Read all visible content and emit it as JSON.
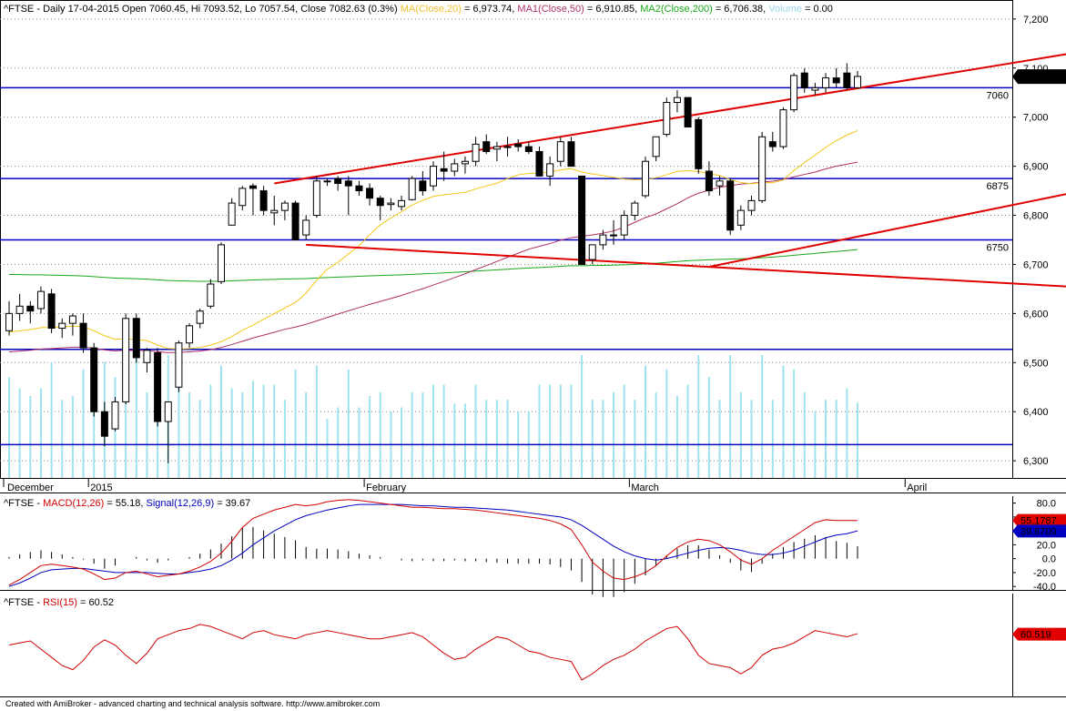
{
  "header": {
    "symbol": "^FTSE",
    "info": "Daily 17-04-2015 Open 7060.45, Hi 7093.52, Lo 7057.54, Close 7082.63 (0.3%)",
    "ma20_label": "MA(Close,20)",
    "ma20_value": "= 6,973.74,",
    "ma50_label": "MA1(Close,50)",
    "ma50_value": "= 6,910.85,",
    "ma200_label": "MA2(Close,200)",
    "ma200_value": "= 6,706.38,",
    "volume_label": "Volume",
    "volume_value": "= 0.00"
  },
  "macd_header": {
    "symbol": "^FTSE",
    "macd_label": "MACD(12,26)",
    "macd_value": "= 55.18,",
    "signal_label": "Signal(12,26,9)",
    "signal_value": "= 39.67"
  },
  "rsi_header": {
    "symbol": "^FTSE",
    "rsi_label": "RSI(15)",
    "rsi_value": "= 60.52"
  },
  "footer": "Created with AmiBroker - advanced charting and technical analysis software. http://www.amibroker.com",
  "colors": {
    "up": "#ffffff",
    "down": "#000000",
    "ma20": "#f5c518",
    "ma50": "#b0306a",
    "ma200": "#1aa81a",
    "trend": "#e00000",
    "hline": "#0000c0",
    "volume": "#9fe3f0",
    "macd": "#d00000",
    "signal": "#0000c0",
    "rsi": "#d00000"
  },
  "chart_data": [
    {
      "type": "candlestick",
      "title": "^FTSE - Daily 17-04-2015",
      "yticks": [
        6300,
        6400,
        6500,
        6600,
        6700,
        6800,
        6900,
        7000,
        7100,
        7200
      ],
      "ytick_labels": [
        "6,300",
        "6,400",
        "6,500",
        "6,600",
        "6,700",
        "6,800",
        "6,900",
        "7,000",
        "7,100",
        "7,200"
      ],
      "ylim": [
        6265,
        7235
      ],
      "month_labels": [
        {
          "label": "December",
          "index": 0
        },
        {
          "label": "2015",
          "index": 8
        },
        {
          "label": "February",
          "index": 34
        },
        {
          "label": "March",
          "index": 59
        },
        {
          "label": "April",
          "index": 85
        }
      ],
      "last_price_label": "7,082.63",
      "last_price": 7082.63,
      "horizontal_lines": [
        {
          "value": 7060,
          "label": "7060"
        },
        {
          "value": 6875,
          "label": "6875"
        },
        {
          "value": 6750,
          "label": "6750"
        },
        {
          "value": 6527,
          "label": ""
        },
        {
          "value": 6333,
          "label": ""
        }
      ],
      "trendlines": [
        {
          "x1": 25,
          "y1": 6865,
          "x2": 101,
          "y2": 7133
        },
        {
          "x1": 28,
          "y1": 6740,
          "x2": 104,
          "y2": 6650
        },
        {
          "x1": 66,
          "y1": 6695,
          "x2": 108,
          "y2": 6880
        }
      ],
      "ohlc": [
        [
          6565,
          6625,
          6555,
          6600
        ],
        [
          6600,
          6640,
          6585,
          6615
        ],
        [
          6615,
          6625,
          6580,
          6605
        ],
        [
          6610,
          6655,
          6600,
          6645
        ],
        [
          6640,
          6650,
          6560,
          6570
        ],
        [
          6570,
          6590,
          6550,
          6580
        ],
        [
          6580,
          6600,
          6555,
          6595
        ],
        [
          6580,
          6600,
          6520,
          6530
        ],
        [
          6530,
          6540,
          6390,
          6400
        ],
        [
          6400,
          6420,
          6330,
          6350
        ],
        [
          6365,
          6430,
          6360,
          6420
        ],
        [
          6420,
          6600,
          6415,
          6590
        ],
        [
          6590,
          6600,
          6500,
          6510
        ],
        [
          6500,
          6530,
          6480,
          6525
        ],
        [
          6520,
          6530,
          6370,
          6380
        ],
        [
          6380,
          6420,
          6295,
          6420
        ],
        [
          6450,
          6545,
          6440,
          6540
        ],
        [
          6540,
          6580,
          6530,
          6575
        ],
        [
          6580,
          6610,
          6570,
          6605
        ],
        [
          6615,
          6670,
          6610,
          6660
        ],
        [
          6665,
          6745,
          6660,
          6740
        ],
        [
          6780,
          6835,
          6780,
          6825
        ],
        [
          6820,
          6860,
          6810,
          6855
        ],
        [
          6860,
          6865,
          6800,
          6855
        ],
        [
          6850,
          6860,
          6800,
          6810
        ],
        [
          6805,
          6840,
          6780,
          6810
        ],
        [
          6810,
          6830,
          6790,
          6825
        ],
        [
          6825,
          6830,
          6750,
          6750
        ],
        [
          6760,
          6800,
          6750,
          6790
        ],
        [
          6800,
          6880,
          6795,
          6870
        ],
        [
          6870,
          6875,
          6860,
          6870
        ],
        [
          6875,
          6880,
          6850,
          6865
        ],
        [
          6870,
          6880,
          6800,
          6860
        ],
        [
          6860,
          6870,
          6840,
          6850
        ],
        [
          6855,
          6865,
          6820,
          6835
        ],
        [
          6835,
          6840,
          6790,
          6820
        ],
        [
          6822,
          6835,
          6810,
          6825
        ],
        [
          6818,
          6840,
          6810,
          6830
        ],
        [
          6832,
          6880,
          6830,
          6875
        ],
        [
          6870,
          6890,
          6840,
          6850
        ],
        [
          6860,
          6910,
          6850,
          6900
        ],
        [
          6895,
          6930,
          6870,
          6890
        ],
        [
          6890,
          6915,
          6880,
          6905
        ],
        [
          6905,
          6920,
          6885,
          6910
        ],
        [
          6910,
          6960,
          6900,
          6945
        ],
        [
          6950,
          6965,
          6925,
          6930
        ],
        [
          6935,
          6950,
          6910,
          6940
        ],
        [
          6940,
          6960,
          6920,
          6940
        ],
        [
          6945,
          6955,
          6930,
          6940
        ],
        [
          6940,
          6950,
          6925,
          6930
        ],
        [
          6930,
          6940,
          6880,
          6880
        ],
        [
          6880,
          6920,
          6860,
          6905
        ],
        [
          6910,
          6960,
          6900,
          6950
        ],
        [
          6950,
          6960,
          6900,
          6900
        ],
        [
          6880,
          6880,
          6700,
          6700
        ],
        [
          6710,
          6740,
          6700,
          6740
        ],
        [
          6740,
          6770,
          6730,
          6760
        ],
        [
          6760,
          6790,
          6740,
          6760
        ],
        [
          6760,
          6810,
          6750,
          6800
        ],
        [
          6800,
          6830,
          6790,
          6825
        ],
        [
          6840,
          6920,
          6835,
          6910
        ],
        [
          6920,
          6960,
          6910,
          6960
        ],
        [
          6965,
          7040,
          6960,
          7030
        ],
        [
          7030,
          7055,
          7010,
          7040
        ],
        [
          7040,
          7040,
          6980,
          6980
        ],
        [
          6995,
          7000,
          6885,
          6895
        ],
        [
          6890,
          6910,
          6840,
          6850
        ],
        [
          6860,
          6880,
          6840,
          6870
        ],
        [
          6870,
          6875,
          6760,
          6770
        ],
        [
          6780,
          6820,
          6770,
          6810
        ],
        [
          6810,
          6840,
          6800,
          6830
        ],
        [
          6830,
          6970,
          6825,
          6960
        ],
        [
          6950,
          6970,
          6930,
          6940
        ],
        [
          6940,
          7020,
          6935,
          7015
        ],
        [
          7015,
          7090,
          7010,
          7085
        ],
        [
          7090,
          7100,
          7050,
          7060
        ],
        [
          7055,
          7070,
          7045,
          7060
        ],
        [
          7060,
          7090,
          7050,
          7080
        ],
        [
          7080,
          7100,
          7060,
          7070
        ],
        [
          7090,
          7110,
          7055,
          7060
        ],
        [
          7060,
          7094,
          7058,
          7083
        ]
      ],
      "x_mapping_note": "",
      "volume": [],
      "ma20": [],
      "ma50": [],
      "ma200": []
    },
    {
      "type": "line",
      "title": "^FTSE - MACD(12,26) = 55.18, Signal(12,26,9) = 39.67",
      "yticks": [
        80,
        60,
        40,
        20,
        0,
        -20,
        -40
      ],
      "ytick_labels": [
        "80.0",
        "60.0",
        "40.0",
        "20.0",
        "0.0",
        "-20.0",
        "-40.0"
      ],
      "ylim": [
        -45,
        90
      ],
      "macd_label": "55.1787",
      "signal_label": "39.6709",
      "series": [
        {
          "name": "MACD",
          "values": [
            -38,
            -30,
            -20,
            -10,
            -8,
            -10,
            -12,
            -15,
            -22,
            -30,
            -28,
            -20,
            -18,
            -22,
            -26,
            -24,
            -22,
            -18,
            -12,
            -4,
            8,
            25,
            45,
            58,
            64,
            70,
            74,
            78,
            76,
            78,
            82,
            84,
            85,
            84,
            82,
            80,
            78,
            76,
            74,
            74,
            73,
            72,
            72,
            71,
            70,
            68,
            66,
            64,
            62,
            60,
            58,
            55,
            50,
            42,
            20,
            -5,
            -18,
            -28,
            -30,
            -26,
            -20,
            -10,
            4,
            16,
            24,
            28,
            26,
            20,
            10,
            -2,
            -8,
            0,
            12,
            22,
            32,
            42,
            52,
            56,
            55,
            55,
            55
          ]
        },
        {
          "name": "Signal",
          "values": [
            -40,
            -35,
            -28,
            -20,
            -16,
            -15,
            -14,
            -14,
            -16,
            -18,
            -20,
            -20,
            -20,
            -20,
            -21,
            -22,
            -22,
            -20,
            -18,
            -15,
            -10,
            -2,
            8,
            20,
            30,
            40,
            48,
            56,
            62,
            66,
            70,
            73,
            76,
            78,
            78,
            78,
            78,
            78,
            77,
            76,
            76,
            75,
            74,
            74,
            73,
            72,
            71,
            70,
            68,
            66,
            64,
            62,
            60,
            56,
            48,
            38,
            28,
            18,
            10,
            4,
            0,
            -2,
            0,
            4,
            8,
            12,
            15,
            16,
            15,
            12,
            8,
            6,
            6,
            8,
            12,
            18,
            24,
            30,
            34,
            36,
            40
          ]
        }
      ]
    },
    {
      "type": "line",
      "title": "^FTSE - RSI(15) = 60.52",
      "rsi_label": "60.519",
      "ylim": [
        0,
        100
      ],
      "series": [
        {
          "name": "RSI(15)",
          "values": [
            50,
            52,
            54,
            46,
            38,
            30,
            26,
            35,
            48,
            55,
            50,
            40,
            32,
            42,
            56,
            60,
            64,
            66,
            70,
            68,
            64,
            60,
            56,
            62,
            64,
            60,
            58,
            56,
            60,
            62,
            64,
            62,
            60,
            58,
            56,
            56,
            58,
            60,
            62,
            58,
            50,
            42,
            36,
            38,
            46,
            52,
            58,
            56,
            50,
            44,
            42,
            38,
            36,
            34,
            16,
            22,
            30,
            36,
            40,
            46,
            54,
            60,
            66,
            68,
            56,
            40,
            32,
            30,
            28,
            22,
            28,
            40,
            46,
            48,
            52,
            58,
            64,
            62,
            60,
            58,
            61
          ]
        }
      ]
    }
  ]
}
